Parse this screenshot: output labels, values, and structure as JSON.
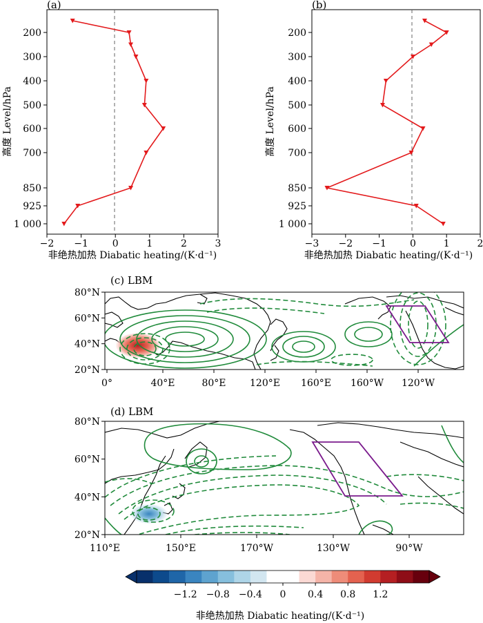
{
  "chart_data": [
    {
      "type": "line",
      "panel": "(a)",
      "xlabel": "非绝热加热 Diabatic heating/(K·d⁻¹)",
      "ylabel": "高度 Level/hPa",
      "xlim": [
        -2,
        3
      ],
      "ylim": [
        1025,
        140
      ],
      "xticks": [
        "−2",
        "−1",
        "0",
        "1",
        "2",
        "3"
      ],
      "yticks": [
        "200",
        "300",
        "400",
        "500",
        "600",
        "700",
        "850",
        "925",
        "1 000"
      ],
      "x": [
        -1.25,
        0.4,
        0.45,
        0.6,
        0.9,
        0.85,
        1.4,
        0.9,
        0.45,
        -1.1,
        -1.5
      ],
      "y": [
        150,
        200,
        250,
        300,
        400,
        500,
        600,
        700,
        850,
        925,
        1000
      ],
      "color": "#e31a1c"
    },
    {
      "type": "line",
      "panel": "(b)",
      "xlabel": "非绝热加热 Diabatic heating/(K·d⁻¹)",
      "ylabel": "高度 Level/hPa",
      "xlim": [
        -3,
        2
      ],
      "ylim": [
        1025,
        140
      ],
      "xticks": [
        "−3",
        "−2",
        "−1",
        "0",
        "1",
        "2"
      ],
      "yticks": [
        "200",
        "300",
        "400",
        "500",
        "600",
        "700",
        "850",
        "925",
        "1 000"
      ],
      "x": [
        0.35,
        1.0,
        0.55,
        0.0,
        -0.8,
        -0.9,
        0.3,
        -0.05,
        -2.55,
        0.1,
        0.9
      ],
      "y": [
        150,
        200,
        250,
        300,
        400,
        500,
        600,
        700,
        850,
        925,
        1000
      ],
      "color": "#e31a1c"
    },
    {
      "type": "map",
      "panel": "(c) LBM",
      "lat_ticks": [
        "80°N",
        "60°N",
        "40°N",
        "20°N"
      ],
      "lon_ticks": [
        "0°",
        "40°E",
        "80°E",
        "120°E",
        "160°E",
        "160°W",
        "120°W"
      ]
    },
    {
      "type": "map",
      "panel": "(d) LBM",
      "lat_ticks": [
        "80°N",
        "60°N",
        "40°N",
        "20°N"
      ],
      "lon_ticks": [
        "110°E",
        "150°E",
        "170°W",
        "130°W",
        "90°W"
      ]
    }
  ],
  "colorbar": {
    "ticks": [
      "−1.2",
      "−0.8",
      "−0.4",
      "0",
      "0.4",
      "0.8",
      "1.2"
    ],
    "label": "非绝热加热 Diabatic heating/(K·d⁻¹)",
    "colors": [
      "#08306b",
      "#0d4a8c",
      "#1f66a8",
      "#3a85c0",
      "#5ea3cf",
      "#86bfdd",
      "#aed5e8",
      "#d2e6f0",
      "#ffffff",
      "#ffffff",
      "#fbd9d4",
      "#f5b4a8",
      "#ee8c79",
      "#e4624f",
      "#d13b30",
      "#b51f22",
      "#8e0d17",
      "#67000d"
    ]
  }
}
